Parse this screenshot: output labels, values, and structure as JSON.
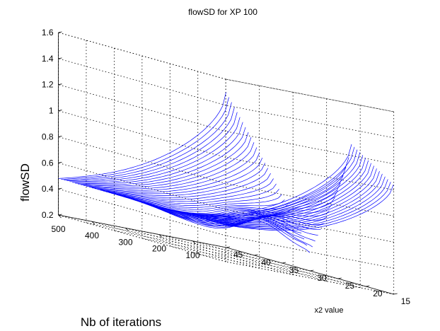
{
  "figure": {
    "background": "#ffffff",
    "axis_color": "#000000",
    "grid_color": "#000000"
  },
  "chart_data": {
    "type": "surface3d",
    "title": "flowSD for XP 100",
    "xlabel": "Nb of iterations",
    "ylabel": "x2 value",
    "zlabel": "flowSD",
    "xlim": [
      0,
      500
    ],
    "ylim": [
      15,
      45
    ],
    "zlim": [
      0.2,
      1.6
    ],
    "x_ticks": [
      "100",
      "200",
      "300",
      "400",
      "500"
    ],
    "y_ticks": [
      "15",
      "20",
      "25",
      "30",
      "35",
      "40",
      "45"
    ],
    "z_ticks": [
      "0.2",
      "0.4",
      "0.6",
      "0.8",
      "1",
      "1.2",
      "1.4",
      "1.6"
    ],
    "grid": true,
    "line_color": "#0000ff",
    "curves_along_axis": "x2 value",
    "x2_range": [
      15,
      45
    ],
    "iterations_range": [
      1,
      500
    ],
    "surface_description": [
      {
        "x2": 15,
        "iterations": 1,
        "flowSD": 1.04
      },
      {
        "x2": 15,
        "iterations": 500,
        "flowSD": 0.48
      },
      {
        "x2": 45,
        "iterations": 1,
        "flowSD": 1.39
      },
      {
        "x2": 45,
        "iterations": 500,
        "flowSD": 0.48
      },
      {
        "x2": 30,
        "iterations": 1,
        "flowSD": 0.33
      },
      {
        "x2": 30,
        "iterations": 150,
        "flowSD": 0.47
      }
    ]
  }
}
